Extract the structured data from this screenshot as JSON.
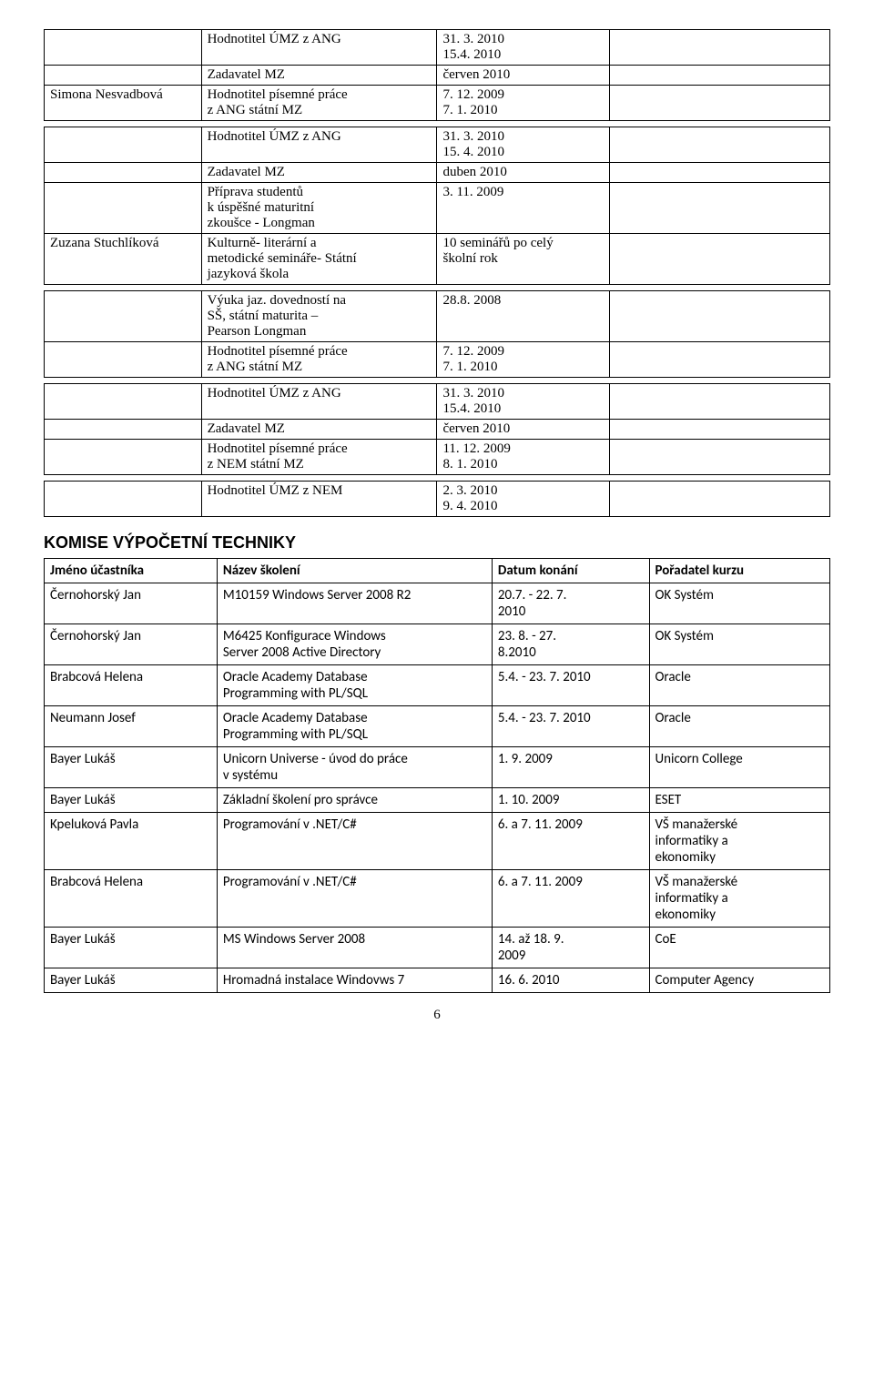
{
  "t1": {
    "rows": [
      [
        "",
        "Hodnotitel ÚMZ z ANG",
        "31. 3. 2010\n15.4. 2010",
        ""
      ],
      [
        "",
        "Zadavatel MZ",
        "červen 2010",
        ""
      ],
      [
        "Simona Nesvadbová",
        "Hodnotitel písemné práce\nz ANG státní MZ",
        "7. 12. 2009\n7.  1. 2010",
        ""
      ]
    ]
  },
  "t2": {
    "rows": [
      [
        "",
        "Hodnotitel ÚMZ z ANG",
        "31. 3. 2010\n15. 4. 2010",
        ""
      ],
      [
        "",
        "Zadavatel MZ",
        "duben 2010",
        ""
      ],
      [
        "",
        "Příprava studentů\nk úspěšné maturitní\nzkoušce - Longman",
        "3. 11. 2009",
        ""
      ],
      [
        "Zuzana Stuchlíková",
        "Kulturně- literární a\nmetodické semináře- Státní\njazyková škola",
        "10 seminářů po celý\nškolní rok",
        ""
      ]
    ]
  },
  "t3": {
    "rows": [
      [
        "",
        "Výuka jaz. dovedností na\nSŠ, státní maturita –\nPearson Longman",
        "28.8. 2008",
        ""
      ],
      [
        "",
        "Hodnotitel písemné práce\nz ANG státní MZ",
        "7. 12. 2009\n7. 1. 2010",
        ""
      ]
    ]
  },
  "t4": {
    "rows": [
      [
        "",
        "Hodnotitel ÚMZ z ANG",
        "31. 3. 2010\n15.4. 2010",
        ""
      ],
      [
        "",
        "Zadavatel MZ",
        "červen 2010",
        ""
      ],
      [
        "",
        "Hodnotitel písemné práce\nz  NEM státní MZ",
        "11. 12. 2009\n8. 1. 2010",
        ""
      ]
    ]
  },
  "t5": {
    "rows": [
      [
        "",
        "Hodnotitel ÚMZ z NEM",
        "2. 3. 2010\n9. 4. 2010",
        ""
      ]
    ]
  },
  "section_title": "KOMISE VÝPOČETNÍ TECHNIKY",
  "tt": {
    "headers": [
      "Jméno účastníka",
      "Název školení",
      "Datum konání",
      "Pořadatel kurzu"
    ],
    "rows": [
      [
        "Černohorský Jan",
        "M10159 Windows Server 2008 R2",
        "20.7. - 22. 7.\n2010",
        "OK Systém"
      ],
      [
        "Černohorský Jan",
        "M6425 Konfigurace Windows\nServer 2008 Active Directory",
        "23. 8. - 27.\n8.2010",
        "OK Systém"
      ],
      [
        "Brabcová Helena",
        "Oracle Academy Database\nProgramming with PL/SQL",
        "5.4. - 23. 7. 2010",
        "Oracle"
      ],
      [
        "Neumann Josef",
        "Oracle Academy Database\nProgramming with PL/SQL",
        "5.4. - 23. 7. 2010",
        "Oracle"
      ],
      [
        "Bayer Lukáš",
        "Unicorn Universe - úvod do práce\nv systému",
        "1. 9. 2009",
        "Unicorn College"
      ],
      [
        "Bayer Lukáš",
        "Základní školení pro správce",
        "1. 10. 2009",
        "ESET"
      ],
      [
        "Kpeluková Pavla",
        "Programování v .NET/C#",
        "6. a 7. 11. 2009",
        "VŠ manažerské\ninformatiky a\nekonomiky"
      ],
      [
        "Brabcová Helena",
        "Programování v .NET/C#",
        "6. a 7. 11. 2009",
        "VŠ manažerské\ninformatiky a\nekonomiky"
      ],
      [
        "Bayer Lukáš",
        "MS Windows Server 2008",
        "14. až 18. 9.\n2009",
        "CoE"
      ],
      [
        "Bayer Lukáš",
        "Hromadná instalace Windovws 7",
        "16. 6. 2010",
        "Computer Agency"
      ]
    ],
    "date_align": [
      "center",
      "center",
      "left",
      "left",
      "center",
      "center",
      "left",
      "left",
      "center",
      "left"
    ]
  },
  "page_number": "6"
}
